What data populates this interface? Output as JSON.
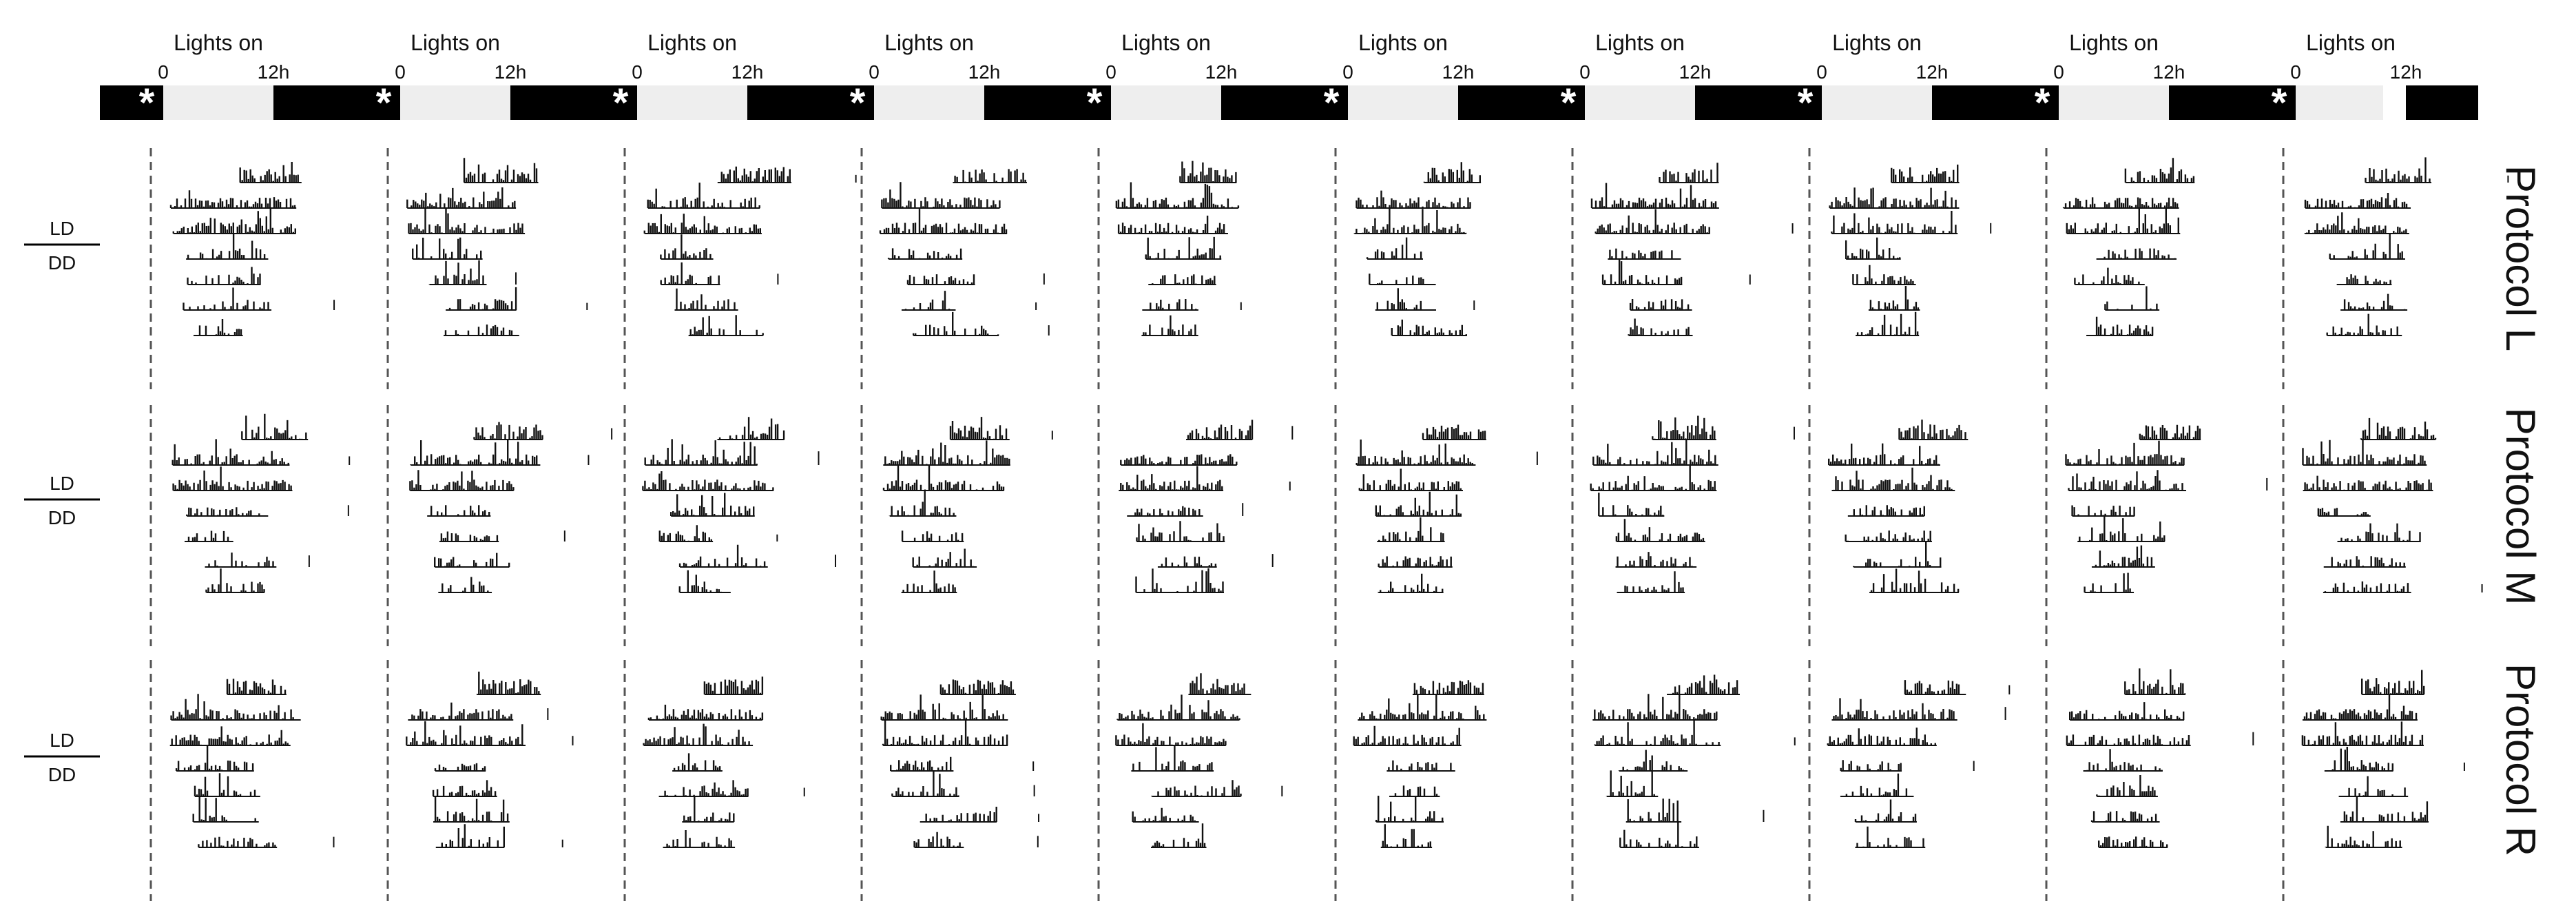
{
  "header": {
    "lights_on_label": "Lights on",
    "tick_start": "0",
    "tick_end": "12h",
    "marker": "*",
    "columns": 10
  },
  "condition_labels": {
    "top": "LD",
    "bottom": "DD"
  },
  "protocols": [
    {
      "label": "Protocol L"
    },
    {
      "label": "Protocol M"
    },
    {
      "label": "Protocol R"
    }
  ],
  "days_per_actogram": 7,
  "colors": {
    "dark_phase": "#000000",
    "light_phase": "#eeeeee",
    "activity": "#111111",
    "dashed_line": "#555555"
  }
}
